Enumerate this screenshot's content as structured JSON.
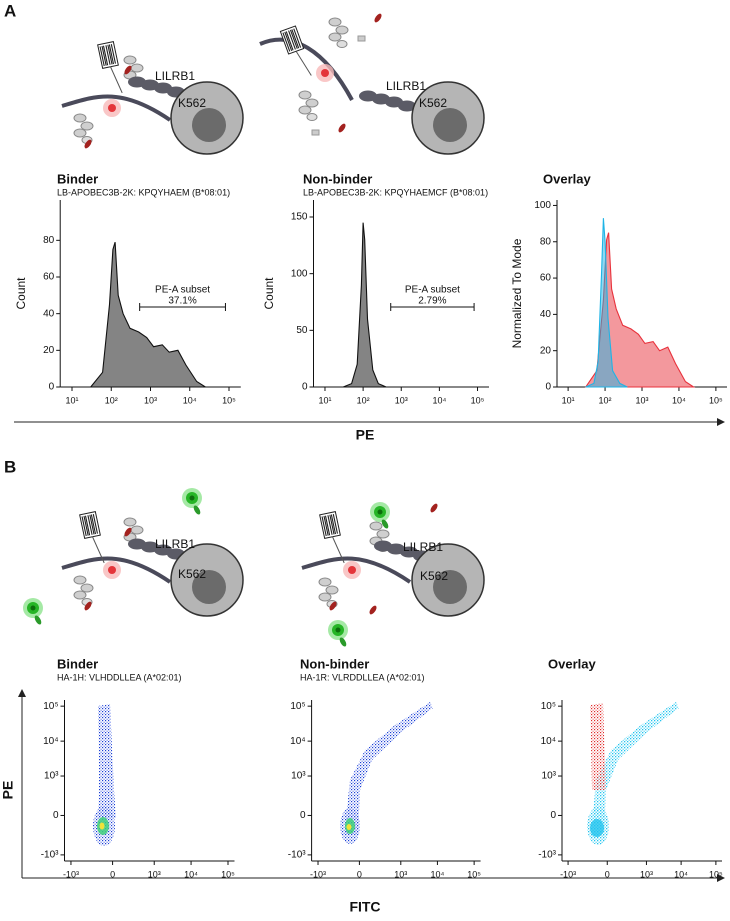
{
  "figure": {
    "panel_a": "A",
    "panel_b": "B",
    "a_xlabel": "PE",
    "b_xlabel": "FITC",
    "b_ylabel": "PE"
  },
  "diagrams": [
    {
      "receptor": "LILRB1",
      "cell": "K562"
    },
    {
      "receptor": "LILRB1",
      "cell": "K562"
    },
    {
      "receptor": "LILRB1",
      "cell": "K562"
    },
    {
      "receptor": "LILRB1",
      "cell": "K562"
    }
  ],
  "chart_data": [
    {
      "type": "area",
      "title": "Binder",
      "subtitle": "LB-APOBEC3B-2K: KPQYHAEM (B*08:01)",
      "ylabel": "Count",
      "xscale": "log",
      "xlim": [
        5,
        200000
      ],
      "xticks": [
        {
          "value": 10,
          "label": "10¹"
        },
        {
          "value": 100,
          "label": "10²"
        },
        {
          "value": 1000,
          "label": "10³"
        },
        {
          "value": 10000,
          "label": "10⁴"
        },
        {
          "value": 100000,
          "label": "10⁵"
        }
      ],
      "ylim": [
        0,
        102
      ],
      "yticks": [
        0,
        20,
        40,
        60,
        80
      ],
      "series": [
        {
          "color": "#6e6e6e",
          "x": [
            30,
            60,
            90,
            110,
            125,
            150,
            200,
            300,
            500,
            800,
            1200,
            2000,
            3000,
            5000,
            8000,
            15000,
            25000
          ],
          "values": [
            0,
            8,
            45,
            75,
            79,
            50,
            40,
            32,
            30,
            27,
            22,
            23,
            19,
            20,
            12,
            3,
            0
          ]
        }
      ],
      "gate": {
        "label": "PE-A subset",
        "percent": "37.1%"
      }
    },
    {
      "type": "area",
      "title": "Non-binder",
      "subtitle": "LB-APOBEC3B-2K: KPQYHAEMCF (B*08:01)",
      "ylabel": "Count",
      "xscale": "log",
      "xlim": [
        5,
        200000
      ],
      "xticks": [
        {
          "value": 10,
          "label": "10¹"
        },
        {
          "value": 100,
          "label": "10²"
        },
        {
          "value": 1000,
          "label": "10³"
        },
        {
          "value": 10000,
          "label": "10⁴"
        },
        {
          "value": 100000,
          "label": "10⁵"
        }
      ],
      "ylim": [
        0,
        165
      ],
      "yticks": [
        0,
        50,
        100,
        150
      ],
      "series": [
        {
          "color": "#6e6e6e",
          "x": [
            30,
            50,
            70,
            90,
            100,
            110,
            130,
            180,
            250,
            400
          ],
          "values": [
            0,
            3,
            20,
            90,
            145,
            130,
            60,
            15,
            3,
            0
          ]
        }
      ],
      "gate": {
        "label": "PE-A subset",
        "percent": "2.79%"
      }
    },
    {
      "type": "area",
      "title": "Overlay",
      "ylabel": "Normalized To Mode",
      "xscale": "log",
      "xlim": [
        5,
        200000
      ],
      "xticks": [
        {
          "value": 10,
          "label": "10¹"
        },
        {
          "value": 100,
          "label": "10²"
        },
        {
          "value": 1000,
          "label": "10³"
        },
        {
          "value": 10000,
          "label": "10⁴"
        },
        {
          "value": 100000,
          "label": "10⁵"
        }
      ],
      "ylim": [
        0,
        103
      ],
      "yticks": [
        0,
        20,
        40,
        60,
        80,
        100
      ],
      "series": [
        {
          "color": "#e8323c",
          "x": [
            30,
            60,
            90,
            110,
            125,
            150,
            200,
            300,
            500,
            800,
            1200,
            2000,
            3000,
            5000,
            8000,
            15000,
            25000
          ],
          "values": [
            0,
            9,
            48,
            81,
            85,
            54,
            43,
            34,
            32,
            29,
            24,
            25,
            20,
            22,
            13,
            3,
            0
          ]
        },
        {
          "color": "#1fb4e6",
          "x": [
            30,
            50,
            65,
            80,
            90,
            100,
            120,
            160,
            250,
            400
          ],
          "values": [
            0,
            2,
            14,
            62,
            93,
            80,
            38,
            9,
            2,
            0
          ]
        }
      ]
    },
    {
      "type": "density",
      "title": "Binder",
      "subtitle": "HA-1H: VLHDDLLEA (A*02:01)",
      "xscale": "biexponential",
      "xlim": [
        -1500,
        150000
      ],
      "xticks": [
        {
          "value": -1000,
          "label": "-10³"
        },
        0,
        {
          "value": 1000,
          "label": "10³"
        },
        {
          "value": 10000,
          "label": "10⁴"
        },
        {
          "value": 100000,
          "label": "10⁵"
        }
      ],
      "yscale": "biexponential",
      "ylim": [
        -1500,
        150000
      ],
      "yticks": [
        {
          "value": -1000,
          "label": "-10³"
        },
        0,
        {
          "value": 1000,
          "label": "10³"
        },
        {
          "value": 10000,
          "label": "10⁴"
        },
        {
          "value": 100000,
          "label": "10⁵"
        }
      ]
    },
    {
      "type": "density",
      "title": "Non-binder",
      "subtitle": "HA-1R: VLRDDLLEA (A*02:01)",
      "xscale": "biexponential",
      "xlim": [
        -1500,
        150000
      ],
      "xticks": [
        {
          "value": -1000,
          "label": "-10³"
        },
        0,
        {
          "value": 1000,
          "label": "10³"
        },
        {
          "value": 10000,
          "label": "10⁴"
        },
        {
          "value": 100000,
          "label": "10⁵"
        }
      ],
      "yscale": "biexponential",
      "ylim": [
        -1500,
        150000
      ],
      "yticks": [
        {
          "value": -1000,
          "label": "-10³"
        },
        0,
        {
          "value": 1000,
          "label": "10³"
        },
        {
          "value": 10000,
          "label": "10⁴"
        },
        {
          "value": 100000,
          "label": "10⁵"
        }
      ]
    },
    {
      "type": "density",
      "title": "Overlay",
      "xscale": "biexponential",
      "xlim": [
        -1500,
        150000
      ],
      "xticks": [
        {
          "value": -1000,
          "label": "-10³"
        },
        0,
        {
          "value": 1000,
          "label": "10³"
        },
        {
          "value": 10000,
          "label": "10⁴"
        },
        {
          "value": 100000,
          "label": "10⁵"
        }
      ],
      "yscale": "biexponential",
      "ylim": [
        -1500,
        150000
      ],
      "yticks": [
        {
          "value": -1000,
          "label": "-10³"
        },
        0,
        {
          "value": 1000,
          "label": "10³"
        },
        {
          "value": 10000,
          "label": "10⁴"
        },
        {
          "value": 100000,
          "label": "10⁵"
        }
      ]
    }
  ]
}
